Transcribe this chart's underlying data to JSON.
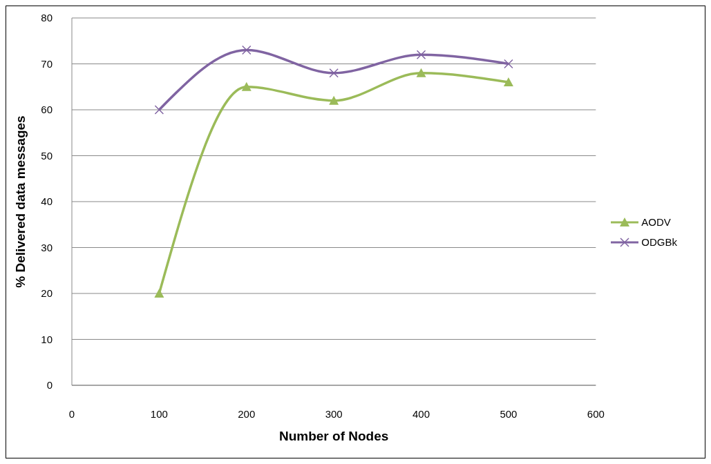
{
  "chart_data": {
    "type": "line",
    "xlabel": "Number of Nodes",
    "ylabel": "% Delivered data messages",
    "x": [
      100,
      200,
      300,
      400,
      500
    ],
    "series": [
      {
        "name": "AODV",
        "color": "#9bbb59",
        "marker": "triangle",
        "values": [
          20,
          65,
          62,
          68,
          66
        ]
      },
      {
        "name": "ODGBk",
        "color": "#8064a2",
        "marker": "cross",
        "values": [
          60,
          73,
          68,
          72,
          70
        ]
      }
    ],
    "xlim": [
      0,
      600
    ],
    "xticks": [
      0,
      100,
      200,
      300,
      400,
      500,
      600
    ],
    "ylim": [
      0,
      80
    ],
    "yticks": [
      0,
      10,
      20,
      30,
      40,
      50,
      60,
      70,
      80
    ],
    "grid": "y",
    "legend": "right",
    "line_style": "solid"
  }
}
